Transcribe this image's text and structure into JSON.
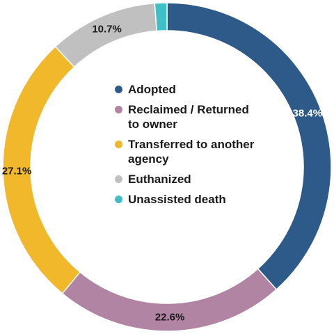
{
  "chart_data": {
    "type": "pie",
    "variant": "donut",
    "slices": [
      {
        "name": "Adopted",
        "value": 38.4,
        "label": "38.4%",
        "color": "#2e5a8a"
      },
      {
        "name": "Reclaimed / Returned to owner",
        "value": 22.6,
        "label": "22.6%",
        "color": "#b084a2"
      },
      {
        "name": "Transferred to another agency",
        "value": 27.1,
        "label": "27.1%",
        "color": "#f0b82a"
      },
      {
        "name": "Euthanized",
        "value": 10.7,
        "label": "10.7%",
        "color": "#c0c0c0"
      },
      {
        "name": "Unassisted death",
        "value": 1.2,
        "label": "",
        "color": "#3fbfc6"
      }
    ],
    "label_colors": {
      "Adopted": "#ffffff",
      "default": "#1a1a1a"
    },
    "legend": {
      "placement": "center",
      "items": [
        {
          "text": "Adopted",
          "color": "#2e5a8a"
        },
        {
          "text": "Reclaimed / Returned to owner",
          "color": "#b084a2"
        },
        {
          "text": "Transferred to another agency",
          "color": "#f0b82a"
        },
        {
          "text": "Euthanized",
          "color": "#c0c0c0"
        },
        {
          "text": "Unassisted death",
          "color": "#3fbfc6"
        }
      ]
    }
  }
}
